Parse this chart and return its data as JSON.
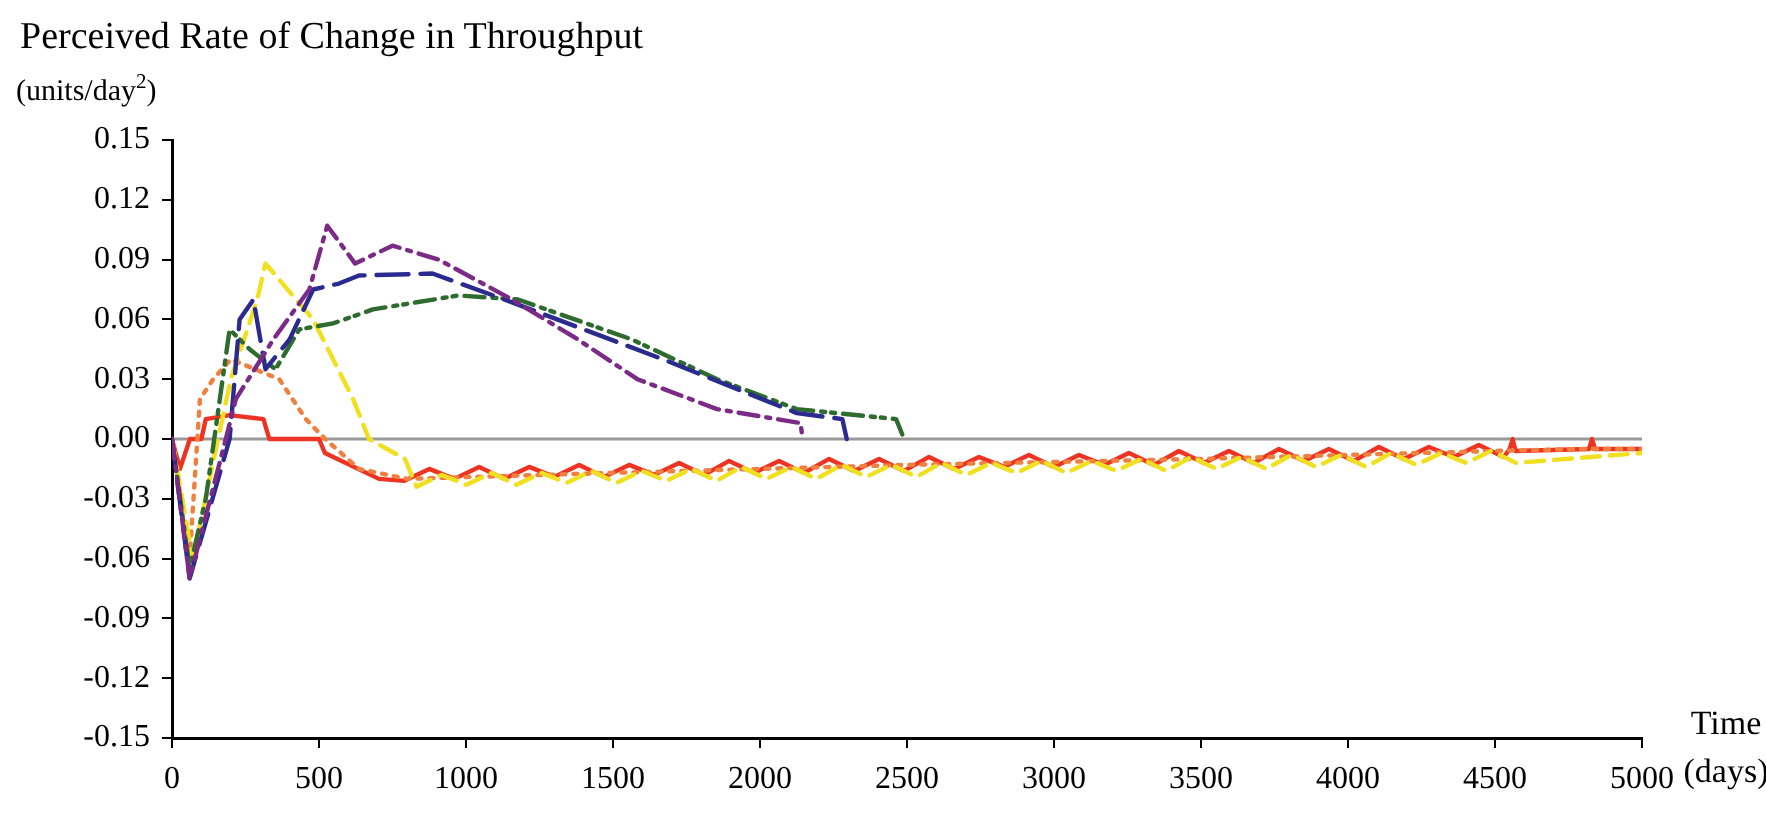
{
  "chart_data": {
    "type": "line",
    "title": "Perceived Rate of Change in Throughput",
    "ylabel": "(units/day$^{2}$)",
    "xlabel": "Time\n(days)",
    "xlim": [
      0,
      5000
    ],
    "xticks": [
      0,
      500,
      1000,
      1500,
      2000,
      2500,
      3000,
      3500,
      4000,
      4500,
      5000
    ],
    "ylim": [
      -0.15,
      0.15
    ],
    "yticks": [
      {
        "value": -0.15,
        "label": "-0.15"
      },
      {
        "value": -0.12,
        "label": "-0.12"
      },
      {
        "value": -0.09,
        "label": "-0.09"
      },
      {
        "value": -0.06,
        "label": "-0.06"
      },
      {
        "value": -0.03,
        "label": "-0.03"
      },
      {
        "value": 0,
        "label": "0.00"
      },
      {
        "value": 0.03,
        "label": "0.03"
      },
      {
        "value": 0.06,
        "label": "0.06"
      },
      {
        "value": 0.09,
        "label": "0.09"
      },
      {
        "value": 0.12,
        "label": "0.12"
      },
      {
        "value": 0.15,
        "label": "0.15"
      }
    ],
    "ref_lines": [
      {
        "axis": "y",
        "value": 0,
        "color": "#999999"
      }
    ],
    "marker": "none",
    "legend": false,
    "series": [
      {
        "color": "#7b2a85",
        "line_style": "dashdot",
        "x": [
          0,
          60,
          183,
          217,
          345,
          467,
          528,
          623,
          750,
          907,
          1156,
          1380,
          1583,
          1854,
          2138,
          2145
        ],
        "values": [
          0,
          -0.07,
          0,
          0.02,
          0.05,
          0.075,
          0.107,
          0.088,
          0.097,
          0.09,
          0.07,
          0.05,
          0.03,
          0.015,
          0.008,
          0
        ]
      },
      {
        "color": "#2a2a8f",
        "line_style": "longdash",
        "x": [
          0,
          60,
          196,
          230,
          277,
          318,
          400,
          480,
          568,
          636,
          886,
          1130,
          1670,
          2125,
          2280,
          2295
        ],
        "values": [
          0,
          -0.07,
          0,
          0.06,
          0.07,
          0.035,
          0.05,
          0.075,
          0.078,
          0.082,
          0.083,
          0.07,
          0.04,
          0.013,
          0.01,
          0
        ]
      },
      {
        "color": "#2e6b2e",
        "line_style": "dashdotdot",
        "x": [
          0,
          60,
          115,
          196,
          264,
          352,
          433,
          548,
          683,
          974,
          1177,
          1563,
          1854,
          2125,
          2463,
          2490
        ],
        "values": [
          0,
          -0.065,
          -0.03,
          0.055,
          0.045,
          0.035,
          0.055,
          0.058,
          0.065,
          0.072,
          0.07,
          0.05,
          0.03,
          0.015,
          0.01,
          0
        ]
      },
      {
        "color": "#f0e020",
        "line_style": "dashed",
        "x": [
          0,
          70,
          200,
          290,
          318,
          480,
          616,
          670,
          792,
          832,
          917,
          1002,
          1087,
          1172,
          1257,
          1342,
          1427,
          1512,
          1597,
          1682,
          1767,
          1852,
          1937,
          2022,
          2107,
          2192,
          2277,
          2362,
          2447,
          2532,
          2617,
          2702,
          2787,
          2872,
          2957,
          3042,
          3127,
          3212,
          3297,
          3382,
          3467,
          3552,
          3637,
          3722,
          3807,
          3892,
          3977,
          4062,
          4147,
          4232,
          4317,
          4402,
          4487,
          4572,
          5000
        ],
        "values": [
          0,
          -0.06,
          0.03,
          0.07,
          0.088,
          0.06,
          0.02,
          0,
          -0.01,
          -0.024,
          -0.018,
          -0.023,
          -0.017,
          -0.023,
          -0.017,
          -0.022,
          -0.016,
          -0.022,
          -0.016,
          -0.021,
          -0.015,
          -0.021,
          -0.014,
          -0.02,
          -0.014,
          -0.02,
          -0.013,
          -0.019,
          -0.013,
          -0.019,
          -0.012,
          -0.018,
          -0.012,
          -0.017,
          -0.011,
          -0.017,
          -0.011,
          -0.016,
          -0.01,
          -0.016,
          -0.009,
          -0.015,
          -0.009,
          -0.015,
          -0.008,
          -0.014,
          -0.008,
          -0.014,
          -0.007,
          -0.013,
          -0.007,
          -0.012,
          -0.006,
          -0.012,
          -0.007
        ]
      },
      {
        "color": "#f08040",
        "line_style": "dotted",
        "x": [
          0,
          60,
          95,
          140,
          200,
          365,
          455,
          521,
          636,
          800,
          1500,
          2500,
          3500,
          4500,
          4800,
          5000
        ],
        "values": [
          0,
          -0.06,
          0.02,
          0.03,
          0.04,
          0.03,
          0.01,
          0,
          -0.015,
          -0.02,
          -0.017,
          -0.013,
          -0.01,
          -0.006,
          -0.005,
          -0.005
        ]
      },
      {
        "color": "#ee3322",
        "line_style": "solid",
        "x": [
          0,
          27,
          61,
          100,
          115,
          196,
          311,
          331,
          500,
          520,
          704,
          790,
          875,
          960,
          1045,
          1130,
          1215,
          1300,
          1385,
          1470,
          1555,
          1640,
          1725,
          1810,
          1895,
          1980,
          2065,
          2150,
          2235,
          2320,
          2405,
          2490,
          2575,
          2660,
          2745,
          2830,
          2915,
          3000,
          3085,
          3170,
          3255,
          3340,
          3425,
          3510,
          3595,
          3680,
          3765,
          3850,
          3935,
          4020,
          4105,
          4190,
          4275,
          4360,
          4445,
          4530,
          4550,
          4560,
          4570,
          4820,
          4830,
          4840,
          5000
        ],
        "values": [
          0,
          -0.015,
          0,
          0,
          0.01,
          0.012,
          0.01,
          0,
          0,
          -0.007,
          -0.02,
          -0.021,
          -0.015,
          -0.02,
          -0.014,
          -0.02,
          -0.014,
          -0.019,
          -0.013,
          -0.019,
          -0.013,
          -0.018,
          -0.012,
          -0.018,
          -0.011,
          -0.017,
          -0.011,
          -0.017,
          -0.01,
          -0.016,
          -0.01,
          -0.016,
          -0.009,
          -0.015,
          -0.009,
          -0.014,
          -0.008,
          -0.014,
          -0.008,
          -0.013,
          -0.007,
          -0.013,
          -0.006,
          -0.012,
          -0.006,
          -0.012,
          -0.005,
          -0.011,
          -0.005,
          -0.011,
          -0.004,
          -0.01,
          -0.004,
          -0.009,
          -0.003,
          -0.009,
          -0.005,
          0,
          -0.006,
          -0.005,
          0,
          -0.005,
          -0.005
        ]
      }
    ]
  }
}
